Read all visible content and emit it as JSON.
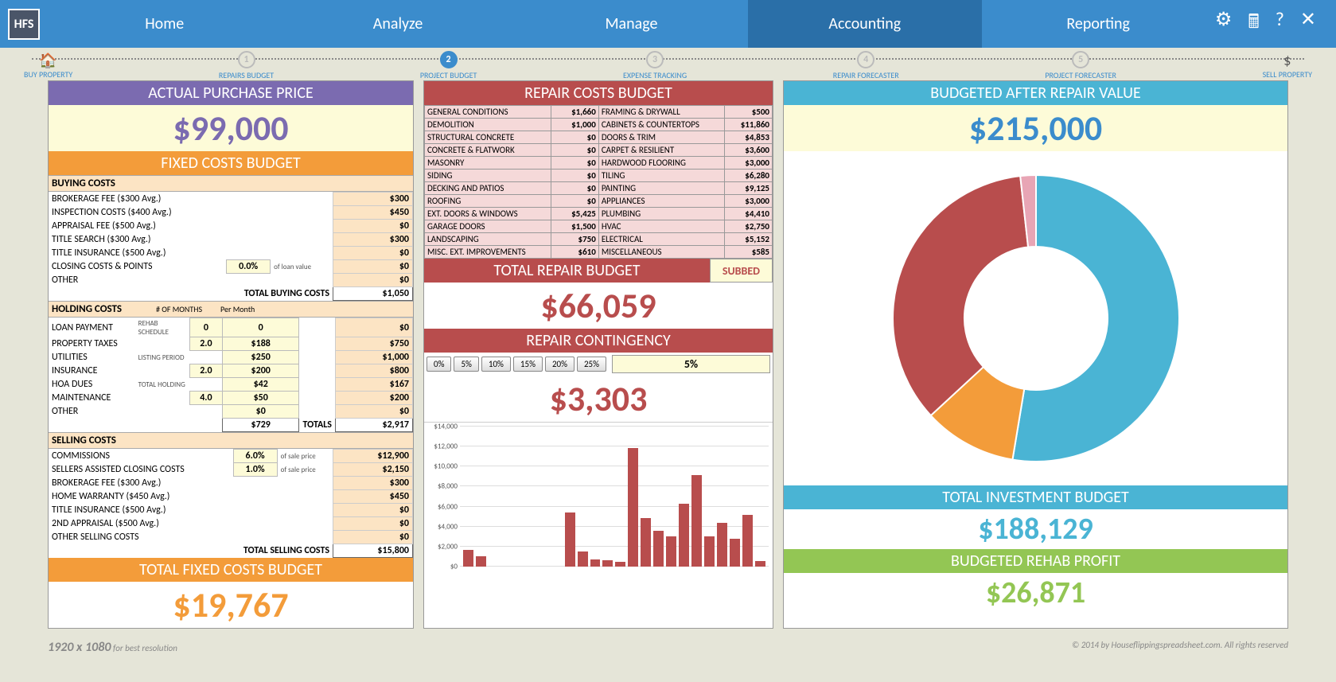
{
  "nav": {
    "logo": "HFS",
    "items": [
      "Home",
      "Analyze",
      "Manage",
      "Accounting",
      "Reporting"
    ],
    "active": 3
  },
  "steps": {
    "start": {
      "icon": "🏠",
      "label": "BUY PROPERTY"
    },
    "items": [
      {
        "num": "1",
        "label": "REPAIRS BUDGET",
        "active": false
      },
      {
        "num": "2",
        "label": "PROJECT BUDGET",
        "active": true
      },
      {
        "num": "3",
        "label": "EXPENSE TRACKING",
        "active": false
      },
      {
        "num": "4",
        "label": "REPAIR FORECASTER",
        "active": false
      },
      {
        "num": "5",
        "label": "PROJECT FORECASTER",
        "active": false
      }
    ],
    "end": {
      "icon": "$",
      "label": "SELL PROPERTY"
    }
  },
  "purchase": {
    "title": "ACTUAL PURCHASE PRICE",
    "value": "$99,000"
  },
  "fixed": {
    "title": "FIXED COSTS BUDGET",
    "buying": {
      "title": "BUYING COSTS",
      "rows": [
        {
          "label": "BROKERAGE FEE ($300 Avg.)",
          "val": "$300"
        },
        {
          "label": "INSPECTION COSTS ($400 Avg.)",
          "val": "$450"
        },
        {
          "label": "APPRAISAL FEE ($500 Avg.)",
          "val": "$0"
        },
        {
          "label": "TITLE SEARCH ($300 Avg.)",
          "val": "$300"
        },
        {
          "label": "TITLE INSURANCE ($500 Avg.)",
          "val": "$0"
        }
      ],
      "closing": {
        "label": "CLOSING COSTS & POINTS",
        "pct": "0.0%",
        "note": "of loan value",
        "val": "$0"
      },
      "other": {
        "label": "OTHER",
        "val": "$0"
      },
      "total_label": "TOTAL BUYING COSTS",
      "total": "$1,050"
    },
    "holding": {
      "title": "HOLDING COSTS",
      "months_label": "# OF MONTHS",
      "permonth_label": "Per Month",
      "sched": [
        {
          "label": "REHAB SCHEDULE",
          "val": "0"
        },
        {
          "label": "",
          "val": "2.0"
        },
        {
          "label": "LISTING PERIOD",
          "val": ""
        },
        {
          "label": "",
          "val": "2.0"
        },
        {
          "label": "TOTAL HOLDING",
          "val": ""
        },
        {
          "label": "",
          "val": "4.0"
        }
      ],
      "rows": [
        {
          "label": "LOAN PAYMENT",
          "pm": "0",
          "val": "$0"
        },
        {
          "label": "PROPERTY TAXES",
          "pm": "$188",
          "val": "$750"
        },
        {
          "label": "UTILITIES",
          "pm": "$250",
          "val": "$1,000"
        },
        {
          "label": "INSURANCE",
          "pm": "$200",
          "val": "$800"
        },
        {
          "label": "HOA DUES",
          "pm": "$42",
          "val": "$167"
        },
        {
          "label": "MAINTENANCE",
          "pm": "$50",
          "val": "$200"
        },
        {
          "label": "OTHER",
          "pm": "$0",
          "val": "$0"
        }
      ],
      "totals_label": "TOTALS",
      "pm_total": "$729",
      "total": "$2,917"
    },
    "selling": {
      "title": "SELLING COSTS",
      "pct_rows": [
        {
          "label": "COMMISSIONS",
          "pct": "6.0%",
          "note": "of sale price",
          "val": "$12,900"
        },
        {
          "label": "SELLERS ASSISTED CLOSING COSTS",
          "pct": "1.0%",
          "note": "of sale price",
          "val": "$2,150"
        }
      ],
      "rows": [
        {
          "label": "BROKERAGE FEE ($300 Avg.)",
          "val": "$300"
        },
        {
          "label": "HOME WARRANTY ($450 Avg.)",
          "val": "$450"
        },
        {
          "label": "TITLE INSURANCE ($500 Avg.)",
          "val": "$0"
        },
        {
          "label": "2ND APPRAISAL ($500 Avg.)",
          "val": "$0"
        },
        {
          "label": "OTHER SELLING COSTS",
          "val": "$0"
        }
      ],
      "total_label": "TOTAL SELLING COSTS",
      "total": "$15,800"
    },
    "grand_title": "TOTAL FIXED COSTS BUDGET",
    "grand": "$19,767"
  },
  "repair": {
    "title": "REPAIR COSTS BUDGET",
    "rows": [
      [
        "GENERAL CONDITIONS",
        "$1,660",
        "FRAMING & DRYWALL",
        "$500"
      ],
      [
        "DEMOLITION",
        "$1,000",
        "CABINETS & COUNTERTOPS",
        "$11,860"
      ],
      [
        "STRUCTURAL CONCRETE",
        "$0",
        "DOORS & TRIM",
        "$4,853"
      ],
      [
        "CONCRETE & FLATWORK",
        "$0",
        "CARPET & RESILIENT",
        "$3,600"
      ],
      [
        "MASONRY",
        "$0",
        "HARDWOOD FLOORING",
        "$3,000"
      ],
      [
        "SIDING",
        "$0",
        "TILING",
        "$6,280"
      ],
      [
        "DECKING AND PATIOS",
        "$0",
        "PAINTING",
        "$9,125"
      ],
      [
        "ROOFING",
        "$0",
        "APPLIANCES",
        "$3,000"
      ],
      [
        "EXT. DOORS & WINDOWS",
        "$5,425",
        "PLUMBING",
        "$4,410"
      ],
      [
        "GARAGE DOORS",
        "$1,500",
        "HVAC",
        "$2,750"
      ],
      [
        "LANDSCAPING",
        "$750",
        "ELECTRICAL",
        "$5,152"
      ],
      [
        "MISC. EXT. IMPROVEMENTS",
        "$610",
        "MISCELLANEOUS",
        "$585"
      ]
    ],
    "total_title": "TOTAL REPAIR BUDGET",
    "subbed": "SUBBED",
    "total": "$66,059",
    "cont_title": "REPAIR CONTINGENCY",
    "cont_btns": [
      "0%",
      "5%",
      "10%",
      "15%",
      "20%",
      "25%"
    ],
    "cont_sel": "5%",
    "cont_val": "$3,303",
    "chart": {
      "ymax": 14000,
      "ystep": 2000,
      "values": [
        1660,
        1000,
        0,
        0,
        0,
        0,
        0,
        0,
        5425,
        1500,
        750,
        610,
        500,
        11860,
        4853,
        3600,
        3000,
        6280,
        9125,
        3000,
        4410,
        2750,
        5152,
        585
      ]
    }
  },
  "arv": {
    "title": "BUDGETED AFTER REPAIR VALUE",
    "value": "$215,000",
    "donut": {
      "colors": [
        "#4ab4d4",
        "#f39c3a",
        "#b84d4d",
        "#e8a5b5"
      ],
      "values": [
        99000,
        19767,
        66059,
        3303
      ]
    },
    "invest_title": "TOTAL INVESTMENT BUDGET",
    "invest": "$188,129",
    "profit_title": "BUDGETED REHAB PROFIT",
    "profit": "$26,871"
  },
  "footer": {
    "res": "1920 x 1080",
    "res_note": "for best resolution",
    "copy": "© 2014 by Houseflippingspreadsheet.com. All rights reserved"
  }
}
